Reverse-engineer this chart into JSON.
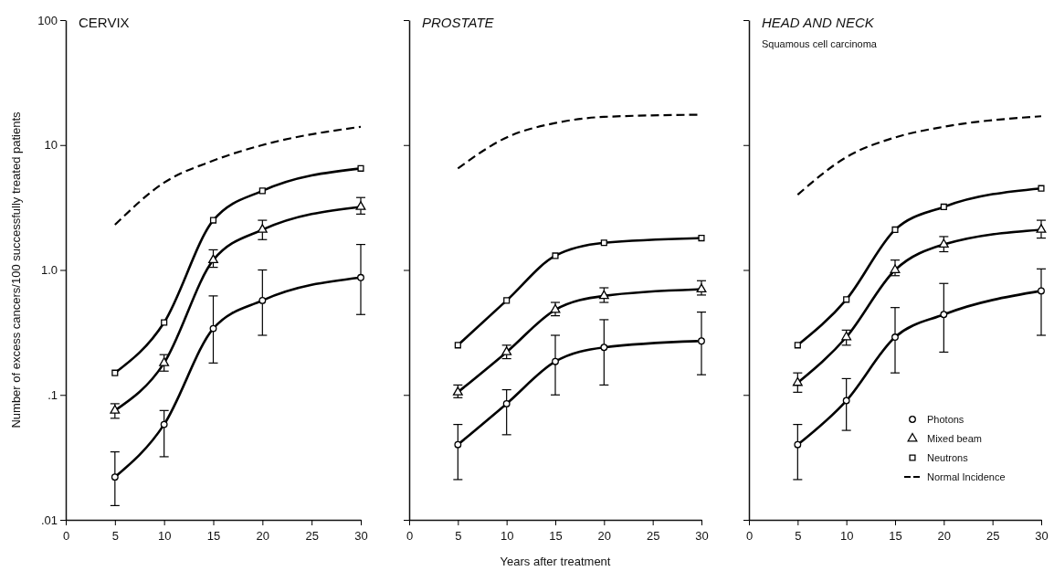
{
  "chart_data": [
    {
      "type": "line",
      "title": "CERVIX",
      "ylabel": "Number of excess cancers/100 successfully treated patients",
      "x": [
        5,
        10,
        15,
        20,
        30
      ],
      "xlim": [
        0,
        30
      ],
      "xticks": [
        0,
        5,
        10,
        15,
        20,
        25,
        30
      ],
      "ylim": [
        0.01,
        100
      ],
      "yticks": [
        {
          "value": 0.01,
          "label": ".01"
        },
        {
          "value": 0.1,
          "label": ".1"
        },
        {
          "value": 1,
          "label": "1.0"
        },
        10,
        100
      ],
      "log": "y",
      "grid": false,
      "legend": false,
      "series": [
        {
          "color": "#000000",
          "marker": "none",
          "line_style": "dashed",
          "values": [
            2.3,
            5,
            7.5,
            10,
            14
          ]
        },
        {
          "color": "#000000",
          "marker": "square",
          "line_style": "solid",
          "values": [
            0.15,
            0.38,
            2.5,
            4.3,
            6.5
          ]
        },
        {
          "color": "#000000",
          "marker": "triangle",
          "line_style": "solid",
          "values": [
            0.075,
            0.18,
            1.2,
            2.1,
            3.2
          ],
          "errors": [
            [
              0.065,
              0.085
            ],
            [
              0.155,
              0.21
            ],
            [
              1.05,
              1.45
            ],
            [
              1.75,
              2.5
            ],
            [
              2.8,
              3.8
            ]
          ]
        },
        {
          "color": "#000000",
          "marker": "circle",
          "line_style": "solid",
          "values": [
            0.022,
            0.058,
            0.34,
            0.57,
            0.87
          ],
          "errors": [
            [
              0.013,
              0.035
            ],
            [
              0.032,
              0.075
            ],
            [
              0.18,
              0.62
            ],
            [
              0.3,
              1.0
            ],
            [
              0.44,
              1.6
            ]
          ]
        }
      ]
    },
    {
      "type": "line",
      "title": "PROSTATE",
      "xlabel": "Years after treatment",
      "x": [
        5,
        10,
        15,
        20,
        30
      ],
      "xlim": [
        0,
        30
      ],
      "xticks": [
        0,
        5,
        10,
        15,
        20,
        25,
        30
      ],
      "ylim": [
        0.01,
        100
      ],
      "yticks": [
        0.01,
        0.1,
        1,
        10,
        100
      ],
      "log": "y",
      "grid": false,
      "legend": false,
      "tick_labels": "x",
      "series": [
        {
          "color": "#000000",
          "marker": "none",
          "line_style": "dashed",
          "values": [
            6.5,
            11.5,
            15,
            16.8,
            17.5
          ]
        },
        {
          "color": "#000000",
          "marker": "square",
          "line_style": "solid",
          "values": [
            0.25,
            0.57,
            1.3,
            1.65,
            1.8
          ]
        },
        {
          "color": "#000000",
          "marker": "triangle",
          "line_style": "solid",
          "values": [
            0.105,
            0.22,
            0.48,
            0.62,
            0.7
          ],
          "errors": [
            [
              0.095,
              0.12
            ],
            [
              0.195,
              0.25
            ],
            [
              0.43,
              0.55
            ],
            [
              0.55,
              0.72
            ],
            [
              0.63,
              0.82
            ]
          ]
        },
        {
          "color": "#000000",
          "marker": "circle",
          "line_style": "solid",
          "values": [
            0.04,
            0.085,
            0.185,
            0.24,
            0.27
          ],
          "errors": [
            [
              0.021,
              0.058
            ],
            [
              0.048,
              0.11
            ],
            [
              0.1,
              0.3
            ],
            [
              0.12,
              0.4
            ],
            [
              0.145,
              0.46
            ]
          ]
        }
      ]
    },
    {
      "type": "line",
      "title": "HEAD AND NECK",
      "subtitle": "Squamous cell carcinoma",
      "x": [
        5,
        10,
        15,
        20,
        30
      ],
      "xlim": [
        0,
        30
      ],
      "xticks": [
        0,
        5,
        10,
        15,
        20,
        25,
        30
      ],
      "ylim": [
        0.01,
        100
      ],
      "yticks": [
        0.01,
        0.1,
        1,
        10,
        100
      ],
      "log": "y",
      "grid": false,
      "legend": "bottom right",
      "tick_labels": "x",
      "series": [
        {
          "name": "Normal Incidence",
          "color": "#000000",
          "marker": "none",
          "line_style": "dashed",
          "values": [
            4,
            8,
            11.5,
            14,
            17
          ]
        },
        {
          "name": "Neutrons",
          "color": "#000000",
          "marker": "square",
          "line_style": "solid",
          "values": [
            0.25,
            0.58,
            2.1,
            3.2,
            4.5
          ]
        },
        {
          "name": "Mixed beam",
          "color": "#000000",
          "marker": "triangle",
          "line_style": "solid",
          "values": [
            0.125,
            0.29,
            1.0,
            1.6,
            2.1
          ],
          "errors": [
            [
              0.105,
              0.15
            ],
            [
              0.25,
              0.33
            ],
            [
              0.9,
              1.2
            ],
            [
              1.4,
              1.85
            ],
            [
              1.8,
              2.5
            ]
          ]
        },
        {
          "name": "Photons",
          "color": "#000000",
          "marker": "circle",
          "line_style": "solid",
          "values": [
            0.04,
            0.09,
            0.29,
            0.44,
            0.68
          ],
          "errors": [
            [
              0.021,
              0.058
            ],
            [
              0.052,
              0.135
            ],
            [
              0.15,
              0.5
            ],
            [
              0.22,
              0.78
            ],
            [
              0.3,
              1.02
            ]
          ]
        }
      ]
    }
  ]
}
